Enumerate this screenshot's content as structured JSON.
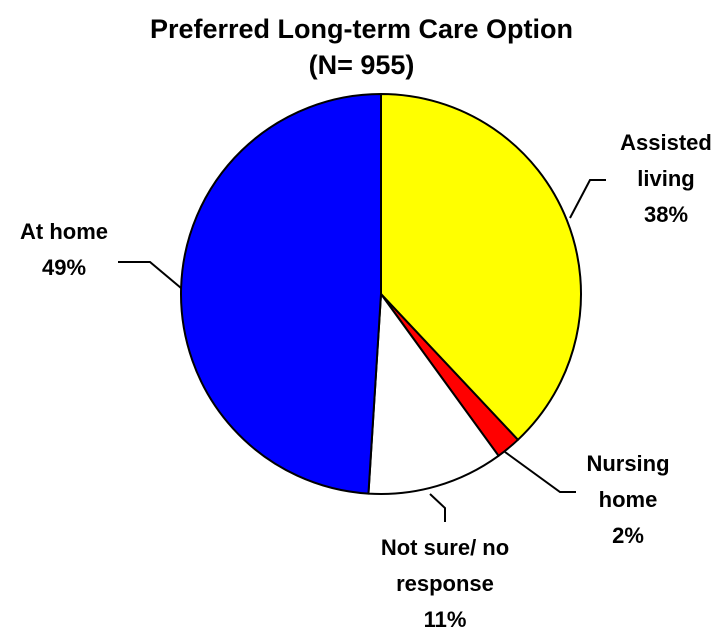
{
  "chart_data": {
    "type": "pie",
    "title": "Preferred Long-term Care Option",
    "subtitle": "(N= 955)",
    "categories": [
      "Assisted living",
      "Nursing home",
      "Not sure/ no response",
      "At home"
    ],
    "values": [
      38,
      2,
      11,
      49
    ],
    "value_labels": [
      "38%",
      "2%",
      "11%",
      "49%"
    ],
    "colors": [
      "#ffff00",
      "#ff0000",
      "#ffffff",
      "#0000ff"
    ]
  }
}
